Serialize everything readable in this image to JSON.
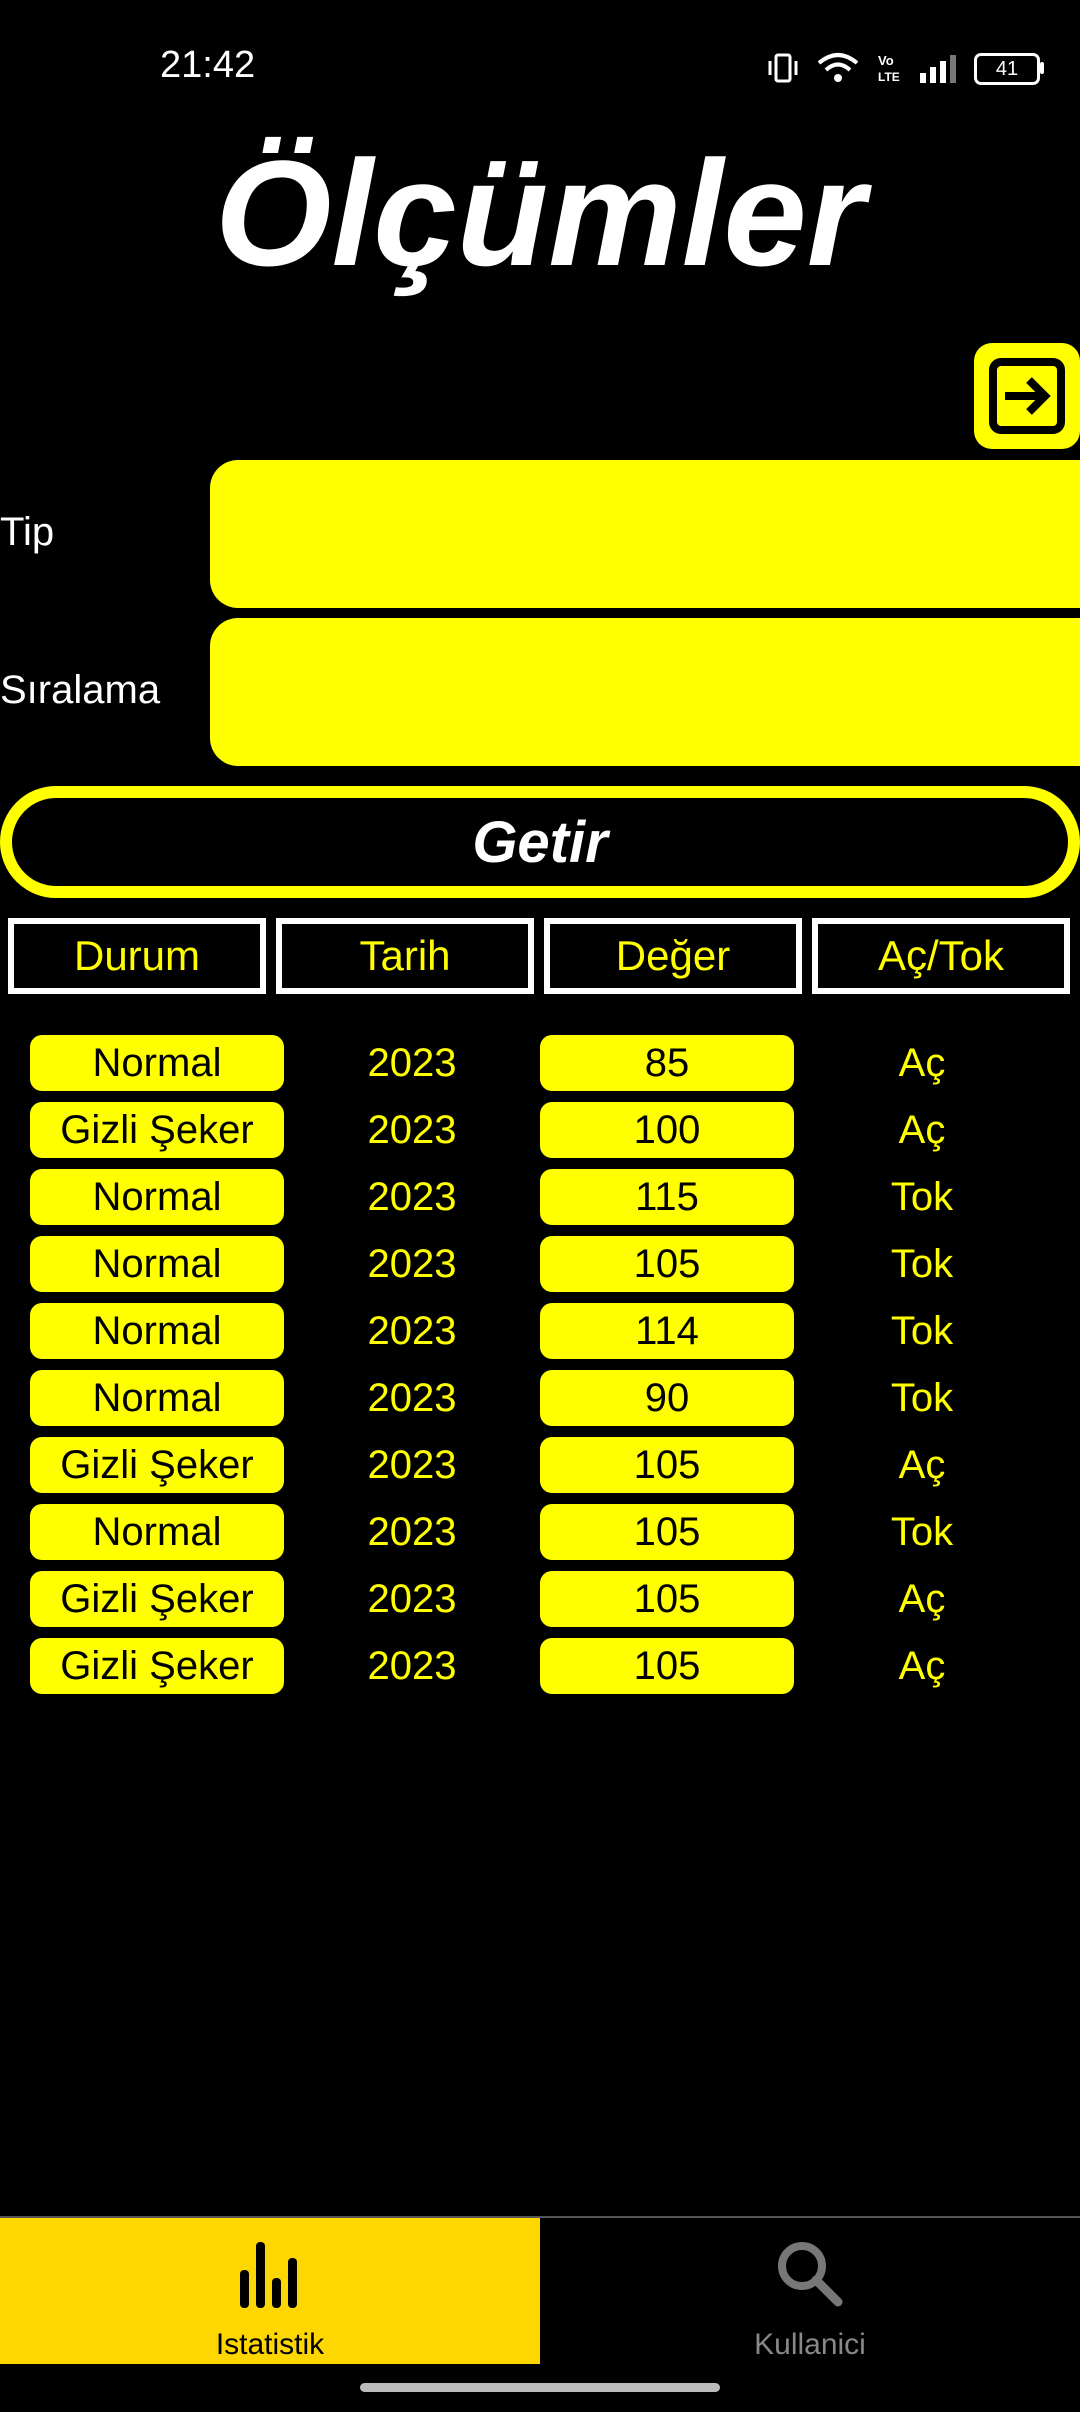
{
  "status": {
    "time": "21:42",
    "battery": "41"
  },
  "title": "Ölçümler",
  "form": {
    "tip_label": "Tip",
    "siralama_label": "Sıralama",
    "tip_value": "",
    "siralama_value": "",
    "submit_label": "Getir"
  },
  "table": {
    "headers": [
      "Durum",
      "Tarih",
      "Değer",
      "Aç/Tok"
    ],
    "rows": [
      {
        "durum": "Normal",
        "tarih": "2023",
        "deger": "85",
        "actok": "Aç"
      },
      {
        "durum": "Gizli Şeker",
        "tarih": "2023",
        "deger": "100",
        "actok": "Aç"
      },
      {
        "durum": "Normal",
        "tarih": "2023",
        "deger": "115",
        "actok": "Tok"
      },
      {
        "durum": "Normal",
        "tarih": "2023",
        "deger": "105",
        "actok": "Tok"
      },
      {
        "durum": "Normal",
        "tarih": "2023",
        "deger": "114",
        "actok": "Tok"
      },
      {
        "durum": "Normal",
        "tarih": "2023",
        "deger": "90",
        "actok": "Tok"
      },
      {
        "durum": "Gizli Şeker",
        "tarih": "2023",
        "deger": "105",
        "actok": "Aç"
      },
      {
        "durum": "Normal",
        "tarih": "2023",
        "deger": "105",
        "actok": "Tok"
      },
      {
        "durum": "Gizli Şeker",
        "tarih": "2023",
        "deger": "105",
        "actok": "Aç"
      },
      {
        "durum": "Gizli Şeker",
        "tarih": "2023",
        "deger": "105",
        "actok": "Aç"
      }
    ]
  },
  "nav": {
    "items": [
      {
        "label": "Istatistik",
        "icon": "bar-chart-icon",
        "active": true
      },
      {
        "label": "Kullanici",
        "icon": "search-icon",
        "active": false
      }
    ]
  },
  "colors": {
    "accent": "#ffff00",
    "nav_active": "#ffd700",
    "background": "#000000"
  }
}
